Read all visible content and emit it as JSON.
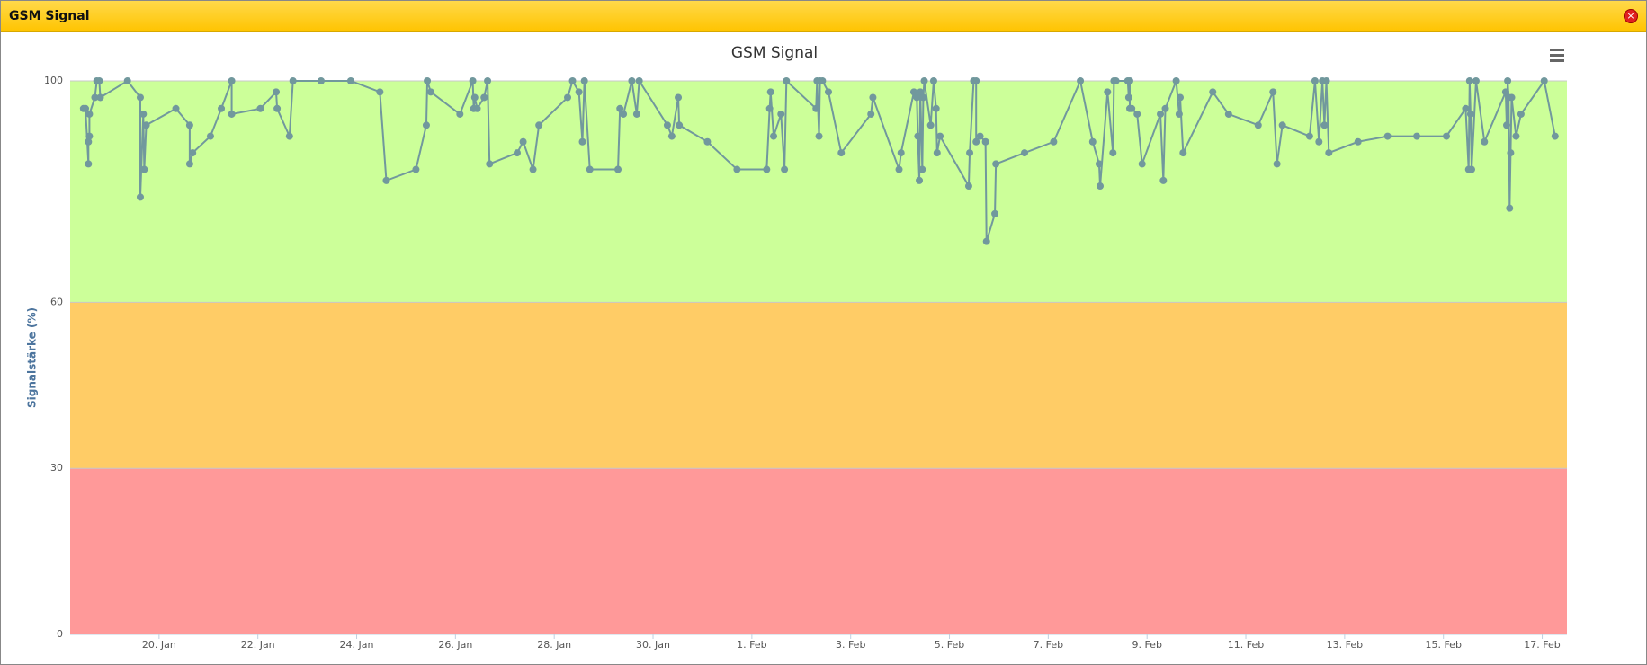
{
  "window": {
    "title": "GSM Signal"
  },
  "chart_data": {
    "type": "line",
    "title": "GSM Signal",
    "y_label": "Signalstärke (%)",
    "color": "#71989d",
    "x": [
      18.47,
      18.51,
      18.57,
      18.57,
      18.59,
      18.59,
      18.7,
      18.74,
      18.79,
      18.81,
      19.36,
      19.62,
      19.62,
      19.68,
      19.7,
      19.74,
      20.34,
      20.62,
      20.62,
      20.68,
      21.04,
      21.26,
      21.47,
      21.47,
      22.05,
      22.37,
      22.39,
      22.64,
      22.71,
      23.28,
      23.88,
      24.47,
      24.6,
      25.2,
      25.41,
      25.43,
      25.5,
      26.09,
      26.35,
      26.37,
      26.39,
      26.44,
      26.58,
      26.65,
      26.69,
      27.25,
      27.37,
      27.57,
      27.69,
      28.27,
      28.37,
      28.5,
      28.57,
      28.61,
      28.72,
      29.29,
      29.33,
      29.4,
      29.57,
      29.67,
      29.72,
      30.29,
      30.38,
      30.51,
      30.53,
      31.1,
      31.7,
      32.3,
      32.36,
      32.38,
      32.44,
      32.59,
      32.66,
      32.7,
      33.3,
      33.32,
      33.36,
      33.38,
      33.43,
      33.55,
      33.81,
      34.41,
      34.45,
      34.98,
      35.02,
      35.28,
      35.34,
      35.36,
      35.39,
      35.41,
      35.45,
      35.47,
      35.49,
      35.62,
      35.68,
      35.73,
      35.75,
      35.81,
      36.39,
      36.41,
      36.49,
      36.54,
      36.54,
      36.62,
      36.73,
      36.75,
      36.92,
      36.94,
      37.52,
      38.11,
      38.65,
      38.9,
      39.03,
      39.05,
      39.2,
      39.31,
      39.33,
      39.37,
      39.61,
      39.63,
      39.65,
      39.65,
      39.69,
      39.8,
      39.9,
      40.27,
      40.33,
      40.37,
      40.59,
      40.65,
      40.67,
      40.73,
      41.33,
      41.65,
      42.25,
      42.55,
      42.63,
      42.74,
      43.29,
      43.4,
      43.48,
      43.55,
      43.59,
      43.63,
      43.68,
      44.27,
      44.87,
      45.46,
      46.06,
      46.45,
      46.51,
      46.53,
      46.55,
      46.57,
      46.66,
      46.83,
      47.26,
      47.28,
      47.3,
      47.32,
      47.34,
      47.36,
      47.38,
      47.47,
      47.57,
      48.04,
      48.26
    ],
    "values": [
      95,
      95,
      85,
      89,
      90,
      94,
      97,
      100,
      100,
      97,
      100,
      97,
      79,
      94,
      84,
      92,
      95,
      92,
      85,
      87,
      90,
      95,
      100,
      94,
      95,
      98,
      95,
      90,
      100,
      100,
      100,
      98,
      82,
      84,
      92,
      100,
      98,
      94,
      100,
      95,
      97,
      95,
      97,
      100,
      85,
      87,
      89,
      84,
      92,
      97,
      100,
      98,
      89,
      100,
      84,
      84,
      95,
      94,
      100,
      94,
      100,
      92,
      90,
      97,
      92,
      89,
      84,
      84,
      95,
      98,
      90,
      94,
      84,
      100,
      95,
      100,
      90,
      100,
      100,
      98,
      87,
      94,
      97,
      84,
      87,
      98,
      97,
      90,
      82,
      98,
      84,
      97,
      100,
      92,
      100,
      95,
      87,
      90,
      81,
      87,
      100,
      100,
      89,
      90,
      89,
      71,
      76,
      85,
      87,
      89,
      100,
      89,
      85,
      81,
      98,
      87,
      100,
      100,
      100,
      97,
      100,
      95,
      95,
      94,
      85,
      94,
      82,
      95,
      100,
      94,
      97,
      87,
      98,
      94,
      92,
      98,
      85,
      92,
      90,
      100,
      89,
      100,
      92,
      100,
      87,
      89,
      90,
      90,
      90,
      95,
      84,
      100,
      94,
      84,
      100,
      89,
      98,
      92,
      100,
      97,
      77,
      87,
      97,
      90,
      94,
      100,
      90
    ],
    "xlim": [
      18.2,
      48.5
    ],
    "xticks": [
      {
        "value": 20,
        "label": "20. Jan"
      },
      {
        "value": 22,
        "label": "22. Jan"
      },
      {
        "value": 24,
        "label": "24. Jan"
      },
      {
        "value": 26,
        "label": "26. Jan"
      },
      {
        "value": 28,
        "label": "28. Jan"
      },
      {
        "value": 30,
        "label": "30. Jan"
      },
      {
        "value": 32,
        "label": "1. Feb"
      },
      {
        "value": 34,
        "label": "3. Feb"
      },
      {
        "value": 36,
        "label": "5. Feb"
      },
      {
        "value": 38,
        "label": "7. Feb"
      },
      {
        "value": 40,
        "label": "9. Feb"
      },
      {
        "value": 42,
        "label": "11. Feb"
      },
      {
        "value": 44,
        "label": "13. Feb"
      },
      {
        "value": 46,
        "label": "15. Feb"
      },
      {
        "value": 48,
        "label": "17. Feb"
      }
    ],
    "ylim": [
      0,
      100
    ],
    "yticks": [
      0,
      30,
      60,
      100
    ],
    "bands": [
      {
        "from": 0,
        "to": 30,
        "color": "#ff9999"
      },
      {
        "from": 30,
        "to": 60,
        "color": "#ffcc66"
      },
      {
        "from": 60,
        "to": 100,
        "color": "#ccff99"
      }
    ]
  }
}
